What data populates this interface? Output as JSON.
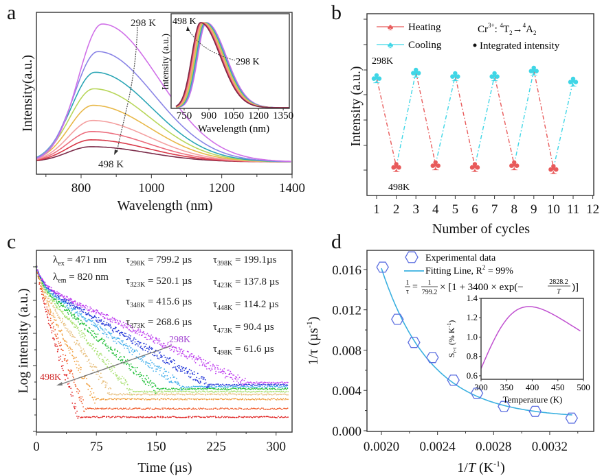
{
  "figure": {
    "panel_labels": [
      "a",
      "b",
      "c",
      "d"
    ]
  },
  "chart_data": [
    {
      "panel": "a",
      "type": "line",
      "xlabel": "Wavelength (nm)",
      "ylabel": "Intensity(a.u.)",
      "xlim": [
        673,
        1400
      ],
      "xticks": [
        "800",
        "1000",
        "1200",
        "1400"
      ],
      "series": [
        {
          "temperature_K": 298,
          "peak_nm": 860,
          "relative_peak": 1.0,
          "color": "#d070e8"
        },
        {
          "temperature_K": 323,
          "peak_nm": 848,
          "relative_peak": 0.8,
          "color": "#8a84e6"
        },
        {
          "temperature_K": 348,
          "peak_nm": 840,
          "relative_peak": 0.65,
          "color": "#2aa5b5"
        },
        {
          "temperature_K": 373,
          "peak_nm": 836,
          "relative_peak": 0.53,
          "color": "#b8d65a"
        },
        {
          "temperature_K": 398,
          "peak_nm": 834,
          "relative_peak": 0.41,
          "color": "#e8b848"
        },
        {
          "temperature_K": 423,
          "peak_nm": 832,
          "relative_peak": 0.3,
          "color": "#f4a0a0"
        },
        {
          "temperature_K": 448,
          "peak_nm": 830,
          "relative_peak": 0.22,
          "color": "#ec6c7c"
        },
        {
          "temperature_K": 473,
          "peak_nm": 829,
          "relative_peak": 0.16,
          "color": "#d83848"
        },
        {
          "temperature_K": 498,
          "peak_nm": 828,
          "relative_peak": 0.11,
          "color": "#7a2a48"
        }
      ],
      "annotations": {
        "cold": "298 K",
        "hot": "498 K"
      },
      "inset": {
        "xlabel": "Wavelength (nm)",
        "ylabel": "Intensity (a.u.)",
        "xlim": [
          671,
          1387
        ],
        "xticks": [
          "750",
          "900",
          "1050",
          "1200",
          "1350"
        ],
        "normalized": true,
        "peaks_nm": [
          885,
          880,
          875,
          870,
          865,
          860,
          855,
          851,
          848
        ],
        "annotations": {
          "hot": "498 K",
          "cold": "298 K"
        }
      }
    },
    {
      "panel": "b",
      "type": "line",
      "xlabel": "Number of cycles",
      "ylabel": "Intensity (a.u.)",
      "xlim": [
        0.5,
        12
      ],
      "ylim": [
        0,
        1
      ],
      "xticks": [
        "1",
        "2",
        "3",
        "4",
        "5",
        "6",
        "7",
        "8",
        "9",
        "10",
        "11",
        "12"
      ],
      "cycles": [
        1,
        2,
        3,
        4,
        5,
        6,
        7,
        8,
        9,
        10,
        11
      ],
      "values": [
        0.65,
        0.16,
        0.68,
        0.17,
        0.66,
        0.16,
        0.66,
        0.17,
        0.69,
        0.15,
        0.63
      ],
      "legend": {
        "heating": "Heating",
        "cooling": "Cooling",
        "integrated": "Integrated intensity"
      },
      "transition": {
        "ion": "Cr",
        "charge": "3+",
        "sep": ": ",
        "sup1": "4",
        "from": "T",
        "sub1": "2",
        "arrow": "→",
        "sup2": "4",
        "to": "A",
        "sub2": "2"
      },
      "colors": {
        "heating": "#e85a5a",
        "cooling": "#3fd6e6"
      },
      "annotations": {
        "high": "298K",
        "low": "498K"
      }
    },
    {
      "panel": "c",
      "type": "scatter",
      "xlabel": "Time (µs)",
      "ylabel": "Log intensity (a.u.)",
      "xlim": [
        0,
        320
      ],
      "xticks": [
        "0",
        "75",
        "150",
        "225",
        "300"
      ],
      "series": [
        {
          "temperature_K": 298,
          "tau_us": 799.2,
          "color": "#c040f0"
        },
        {
          "temperature_K": 323,
          "tau_us": 520.1,
          "color": "#2438d8"
        },
        {
          "temperature_K": 348,
          "tau_us": 415.6,
          "color": "#48b0ec"
        },
        {
          "temperature_K": 373,
          "tau_us": 268.6,
          "color": "#22c03a"
        },
        {
          "temperature_K": 398,
          "tau_us": 199.1,
          "color": "#a8e070"
        },
        {
          "temperature_K": 423,
          "tau_us": 137.8,
          "color": "#e8c080"
        },
        {
          "temperature_K": 448,
          "tau_us": 114.2,
          "color": "#f0a040"
        },
        {
          "temperature_K": 473,
          "tau_us": 90.4,
          "color": "#f06030"
        },
        {
          "temperature_K": 498,
          "tau_us": 61.6,
          "color": "#e02020"
        }
      ],
      "excitation": {
        "sym": "λ",
        "sub": "ex",
        "text": " = 471 nm"
      },
      "emission": {
        "sym": "λ",
        "sub": "em",
        "text": " = 820 nm"
      },
      "lifetimes": [
        {
          "sym": "τ",
          "sub": "298K",
          "text": " = 799.2 µs"
        },
        {
          "sym": "τ",
          "sub": "323K",
          "text": " = 520.1 µs"
        },
        {
          "sym": "τ",
          "sub": "348K",
          "text": " = 415.6 µs"
        },
        {
          "sym": "τ",
          "sub": "373K",
          "text": " = 268.6 µs"
        },
        {
          "sym": "τ",
          "sub": "398K",
          "text": " = 199.1µs"
        },
        {
          "sym": "τ",
          "sub": "423K",
          "text": " = 137.8 µs"
        },
        {
          "sym": "τ",
          "sub": "448K",
          "text": " = 114.2 µs"
        },
        {
          "sym": "τ",
          "sub": "473K",
          "text": " =  90.4 µs"
        },
        {
          "sym": "τ",
          "sub": "498K",
          "text": " =  61.6 µs"
        }
      ],
      "annotations": {
        "cold": "298K",
        "hot": "498K"
      }
    },
    {
      "panel": "d",
      "type": "scatter",
      "xlabel": {
        "main": "1/",
        "var": "T",
        "unit": " (K",
        "sup": "-1",
        "close": ")"
      },
      "ylabel": {
        "main": "1/τ (µs",
        "sup": "-1",
        "close": ")"
      },
      "xlim": [
        0.001897,
        0.003509
      ],
      "ylim": [
        0,
        0.0179
      ],
      "xticks": [
        "0.0020",
        "0.0024",
        "0.0028",
        "0.0032"
      ],
      "yticks": [
        "0.000",
        "0.004",
        "0.008",
        "0.012",
        "0.016"
      ],
      "x": [
        0.002008,
        0.002114,
        0.002232,
        0.002364,
        0.002513,
        0.002681,
        0.002874,
        0.003096,
        0.003356
      ],
      "y": [
        0.01623,
        0.01106,
        0.00876,
        0.00726,
        0.00502,
        0.00372,
        0.00241,
        0.00192,
        0.00125
      ],
      "fit": {
        "tau0": 799.2,
        "A": 3400,
        "E": 2828.2
      },
      "legend": {
        "data": "Experimental data",
        "fit": "Fitting Line, R",
        "fit_sup": "2",
        "fit_end": " = 99%"
      },
      "equation": {
        "lhs_num": "1",
        "lhs_den": "τ",
        "eq": "=",
        "rhs_num": "1",
        "rhs_den": "799.2",
        "mid": "× [1 + 3400 × exp(−",
        "exp_num": "2828.2",
        "exp_den": "T",
        "end": ")]"
      },
      "colors": {
        "marker": "#5b6ee0",
        "fit": "#3ab0e0",
        "inset": "#c050d0"
      },
      "inset": {
        "xlabel": "Temperature (K)",
        "ylabel": {
          "main": "S",
          "sub": "r-τ",
          "unit": " (% K",
          "sup": "-1",
          "close": ")"
        },
        "xlim": [
          300,
          500
        ],
        "ylim": [
          0.564,
          1.4
        ],
        "xticks": [
          "300",
          "350",
          "400",
          "450",
          "500"
        ],
        "yticks": [
          "0.6",
          "0.8",
          "1.0",
          "1.2",
          "1.4"
        ]
      }
    }
  ]
}
